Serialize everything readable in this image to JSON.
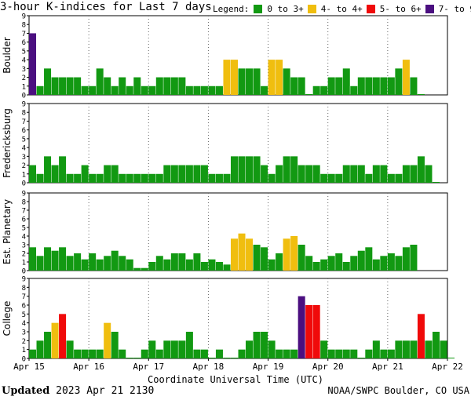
{
  "header": {
    "title": "3-hour K-indices for Last 7 days",
    "legend_label": "Legend:",
    "legend": [
      {
        "label": "0 to 3+",
        "color": "#129912"
      },
      {
        "label": "4- to 4+",
        "color": "#f0be0f"
      },
      {
        "label": "5- to 6+",
        "color": "#f00a0a"
      },
      {
        "label": "7- to 9",
        "color": "#4b0f80"
      }
    ]
  },
  "footer": {
    "updated_label": "Updated",
    "updated_value": "2023 Apr 21 2130",
    "source": "NOAA/SWPC Boulder, CO USA"
  },
  "chart_data": {
    "type": "bar",
    "title": "3-hour K-indices for Last 7 days",
    "xlabel": "Coordinate Universal Time (UTC)",
    "x_ticks": [
      "Apr 15",
      "Apr 16",
      "Apr 17",
      "Apr 18",
      "Apr 19",
      "Apr 20",
      "Apr 21",
      "Apr 22"
    ],
    "ylim": [
      0,
      9
    ],
    "y_ticks": [
      0,
      1,
      2,
      3,
      4,
      5,
      6,
      7,
      8,
      9
    ],
    "color_scale": [
      {
        "range": "0 to 3+",
        "color": "#129912"
      },
      {
        "range": "4- to 4+",
        "color": "#f0be0f"
      },
      {
        "range": "5- to 6+",
        "color": "#f00a0a"
      },
      {
        "range": "7- to 9",
        "color": "#4b0f80"
      }
    ],
    "panels": [
      {
        "name": "Boulder",
        "values": [
          7,
          1,
          3,
          2,
          2,
          2,
          2,
          1,
          1,
          3,
          2,
          1,
          2,
          1,
          2,
          1,
          1,
          2,
          2,
          2,
          2,
          1,
          1,
          1,
          1,
          1,
          4,
          4,
          3,
          3,
          3,
          1,
          4,
          4,
          3,
          2,
          2,
          0,
          1,
          1,
          2,
          2,
          3,
          1,
          2,
          2,
          2,
          2,
          2,
          3,
          4,
          2,
          0
        ]
      },
      {
        "name": "Fredericksburg",
        "values": [
          2,
          1,
          3,
          2,
          3,
          1,
          1,
          2,
          1,
          1,
          2,
          2,
          1,
          1,
          1,
          1,
          1,
          1,
          2,
          2,
          2,
          2,
          2,
          2,
          1,
          1,
          1,
          3,
          3,
          3,
          3,
          2,
          1,
          2,
          3,
          3,
          2,
          2,
          2,
          1,
          1,
          1,
          2,
          2,
          2,
          1,
          2,
          2,
          1,
          1,
          2,
          2,
          3,
          2,
          0
        ]
      },
      {
        "name": "Est. Planetary",
        "values": [
          2.7,
          1.7,
          2.7,
          2.3,
          2.7,
          1.7,
          2.0,
          1.3,
          2.0,
          1.3,
          1.7,
          2.3,
          1.7,
          1.3,
          0.3,
          0.3,
          1.0,
          1.7,
          1.3,
          2.0,
          2.0,
          1.3,
          2.0,
          1.0,
          1.3,
          1.0,
          0.7,
          3.7,
          4.3,
          3.7,
          3.0,
          2.7,
          1.3,
          2.0,
          3.7,
          4.0,
          3.0,
          1.7,
          1.0,
          1.3,
          1.7,
          2.0,
          1.0,
          1.7,
          2.3,
          2.7,
          1.3,
          1.7,
          2.0,
          1.7,
          2.7,
          3.0
        ]
      },
      {
        "name": "College",
        "values": [
          1,
          2,
          3,
          4,
          5,
          2,
          1,
          1,
          1,
          1,
          4,
          3,
          1,
          0,
          0,
          1,
          2,
          1,
          2,
          2,
          2,
          3,
          1,
          1,
          0,
          1,
          0,
          0,
          1,
          2,
          3,
          3,
          2,
          1,
          1,
          1,
          7,
          6,
          6,
          2,
          1,
          1,
          1,
          1,
          0,
          1,
          2,
          1,
          1,
          2,
          2,
          2,
          5,
          2,
          3,
          2,
          0
        ]
      }
    ]
  }
}
